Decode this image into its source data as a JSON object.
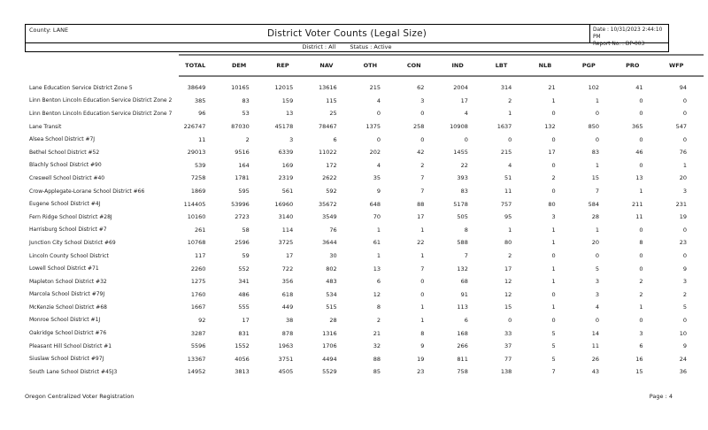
{
  "report": {
    "county": "County: LANE",
    "title": "District Voter Counts (Legal Size)",
    "date": "Date : 10/31/2023 2:44:10 PM",
    "report_no": "Report No. : DP-003",
    "district_filter": "District : All",
    "status_filter": "Status : Active"
  },
  "table": {
    "columns": [
      "TOTAL",
      "DEM",
      "REP",
      "NAV",
      "OTH",
      "CON",
      "IND",
      "LBT",
      "NLB",
      "PGP",
      "PRO",
      "WFP"
    ],
    "rows": [
      {
        "name": "Lane Education Service District Zone 5",
        "values": [
          38649,
          10165,
          12015,
          13616,
          215,
          62,
          2004,
          314,
          21,
          102,
          41,
          94
        ]
      },
      {
        "name": "Linn Benton Lincoln Education Service District Zone 2",
        "values": [
          385,
          83,
          159,
          115,
          4,
          3,
          17,
          2,
          1,
          1,
          0,
          0
        ]
      },
      {
        "name": "Linn Benton Lincoln Education Service District Zone 7",
        "values": [
          96,
          53,
          13,
          25,
          0,
          0,
          4,
          1,
          0,
          0,
          0,
          0
        ]
      },
      {
        "name": "Lane Transit",
        "values": [
          226747,
          87030,
          45178,
          78467,
          1375,
          258,
          10908,
          1637,
          132,
          850,
          365,
          547
        ]
      },
      {
        "name": "Alsea School District #7J",
        "values": [
          11,
          2,
          3,
          6,
          0,
          0,
          0,
          0,
          0,
          0,
          0,
          0
        ]
      },
      {
        "name": "Bethel School District #52",
        "values": [
          29013,
          9516,
          6339,
          11022,
          202,
          42,
          1455,
          215,
          17,
          83,
          46,
          76
        ]
      },
      {
        "name": "Blachly School District #90",
        "values": [
          539,
          164,
          169,
          172,
          4,
          2,
          22,
          4,
          0,
          1,
          0,
          1
        ]
      },
      {
        "name": "Creswell School District #40",
        "values": [
          7258,
          1781,
          2319,
          2622,
          35,
          7,
          393,
          51,
          2,
          15,
          13,
          20
        ]
      },
      {
        "name": "Crow-Applegate-Lorane School District #66",
        "values": [
          1869,
          595,
          561,
          592,
          9,
          7,
          83,
          11,
          0,
          7,
          1,
          3
        ]
      },
      {
        "name": "Eugene School District #4J",
        "values": [
          114405,
          53996,
          16960,
          35672,
          648,
          88,
          5178,
          757,
          80,
          584,
          211,
          231
        ]
      },
      {
        "name": "Fern Ridge School District #28J",
        "values": [
          10160,
          2723,
          3140,
          3549,
          70,
          17,
          505,
          95,
          3,
          28,
          11,
          19
        ]
      },
      {
        "name": "Harrisburg School District #7",
        "values": [
          261,
          58,
          114,
          76,
          1,
          1,
          8,
          1,
          1,
          1,
          0,
          0
        ]
      },
      {
        "name": "Junction City School District #69",
        "values": [
          10768,
          2596,
          3725,
          3644,
          61,
          22,
          588,
          80,
          1,
          20,
          8,
          23
        ]
      },
      {
        "name": "Lincoln County School District",
        "values": [
          117,
          59,
          17,
          30,
          1,
          1,
          7,
          2,
          0,
          0,
          0,
          0
        ]
      },
      {
        "name": "Lowell School District #71",
        "values": [
          2260,
          552,
          722,
          802,
          13,
          7,
          132,
          17,
          1,
          5,
          0,
          9
        ]
      },
      {
        "name": "Mapleton School District #32",
        "values": [
          1275,
          341,
          356,
          483,
          6,
          0,
          68,
          12,
          1,
          3,
          2,
          3
        ]
      },
      {
        "name": "Marcola School District #79J",
        "values": [
          1760,
          486,
          618,
          534,
          12,
          0,
          91,
          12,
          0,
          3,
          2,
          2
        ]
      },
      {
        "name": "McKenzie School District #68",
        "values": [
          1667,
          555,
          449,
          515,
          8,
          1,
          113,
          15,
          1,
          4,
          1,
          5
        ]
      },
      {
        "name": "Monroe School District #1J",
        "values": [
          92,
          17,
          38,
          28,
          2,
          1,
          6,
          0,
          0,
          0,
          0,
          0
        ]
      },
      {
        "name": "Oakridge School District #76",
        "values": [
          3287,
          831,
          878,
          1316,
          21,
          8,
          168,
          33,
          5,
          14,
          3,
          10
        ]
      },
      {
        "name": "Pleasant Hill School District #1",
        "values": [
          5596,
          1552,
          1963,
          1706,
          32,
          9,
          266,
          37,
          5,
          11,
          6,
          9
        ]
      },
      {
        "name": "Siuslaw School District #97J",
        "values": [
          13367,
          4056,
          3751,
          4494,
          88,
          19,
          811,
          77,
          5,
          26,
          16,
          24
        ]
      },
      {
        "name": "South Lane School District #45J3",
        "values": [
          14952,
          3813,
          4505,
          5529,
          85,
          23,
          758,
          138,
          7,
          43,
          15,
          36
        ]
      }
    ]
  },
  "footer": {
    "app_name": "Oregon Centralized Voter Registration",
    "page": "Page : 4"
  },
  "colors": {
    "rule": "#7d7d7d",
    "border": "#000000",
    "text": "#1a1a1a"
  }
}
